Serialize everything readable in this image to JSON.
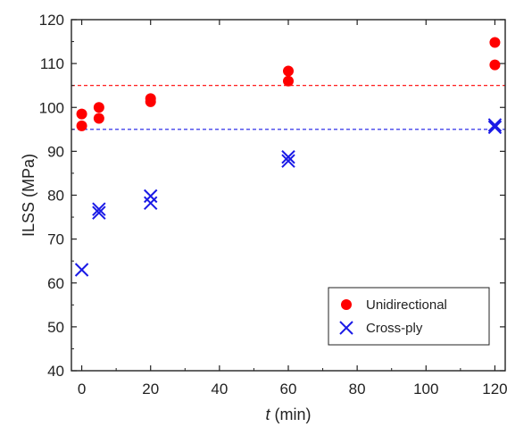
{
  "chart_data": {
    "type": "scatter",
    "xlabel_var": "t",
    "xlabel_unit": " (min)",
    "ylabel": "ILSS (MPa)",
    "xlim": [
      -3,
      123
    ],
    "ylim": [
      40,
      120
    ],
    "xticks": [
      0,
      20,
      40,
      60,
      80,
      100,
      120
    ],
    "yticks": [
      40,
      50,
      60,
      70,
      80,
      90,
      100,
      110,
      120
    ],
    "grid": false,
    "legend_position": "bottom-right",
    "series": [
      {
        "name": "Unidirectional",
        "marker": "circle",
        "color": "#ff0000",
        "points": [
          [
            0,
            98.5
          ],
          [
            0,
            95.8
          ],
          [
            5,
            100.0
          ],
          [
            5,
            97.5
          ],
          [
            20,
            102.0
          ],
          [
            20,
            101.3
          ],
          [
            60,
            108.3
          ],
          [
            60,
            106.0
          ],
          [
            120,
            114.8
          ],
          [
            120,
            109.7
          ]
        ]
      },
      {
        "name": "Cross-ply",
        "marker": "x",
        "color": "#1a1ae6",
        "points": [
          [
            0,
            63.0
          ],
          [
            5,
            76.8
          ],
          [
            5,
            76.0
          ],
          [
            20,
            79.8
          ],
          [
            20,
            78.2
          ],
          [
            60,
            88.7
          ],
          [
            60,
            87.8
          ],
          [
            120,
            96.0
          ],
          [
            120,
            95.5
          ]
        ]
      }
    ],
    "reference_lines": [
      {
        "y": 105,
        "color": "#ff0000",
        "style": "dashed"
      },
      {
        "y": 95,
        "color": "#1a1ae6",
        "style": "dashed"
      }
    ]
  }
}
